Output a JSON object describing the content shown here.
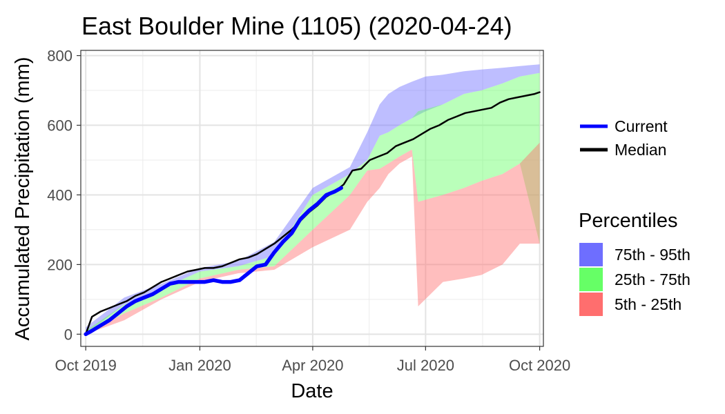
{
  "chart_data": {
    "type": "area",
    "title": "East Boulder Mine (1105) (2020-04-24)",
    "xlabel": "Date",
    "ylabel": "Accumulated Precipitation (mm)",
    "xlim": [
      "2019-09-27",
      "2020-10-04"
    ],
    "ylim": [
      -35,
      815
    ],
    "x_ticks": [
      {
        "date": "2019-10-01",
        "label": "Oct 2019"
      },
      {
        "date": "2020-01-01",
        "label": "Jan 2020"
      },
      {
        "date": "2020-04-01",
        "label": "Apr 2020"
      },
      {
        "date": "2020-07-01",
        "label": "Jul 2020"
      },
      {
        "date": "2020-10-01",
        "label": "Oct 2020"
      }
    ],
    "y_ticks": [
      0,
      200,
      400,
      600,
      800
    ],
    "grid": true,
    "legend_lines_title": "",
    "legend_fill_title": "Percentiles",
    "legend_position": "right",
    "colors": {
      "current": "#0000ff",
      "median": "#000000",
      "p75_95": "#6e6eff",
      "p25_75": "#66ff66",
      "p5_25": "#ff6e6e"
    },
    "series_lines": [
      {
        "name": "Current",
        "color": "#0000ff",
        "x": [
          "2019-10-01",
          "2019-10-06",
          "2019-10-13",
          "2019-10-20",
          "2019-10-27",
          "2019-11-03",
          "2019-11-10",
          "2019-11-17",
          "2019-11-24",
          "2019-12-01",
          "2019-12-08",
          "2019-12-15",
          "2019-12-22",
          "2019-12-29",
          "2020-01-05",
          "2020-01-12",
          "2020-01-19",
          "2020-01-26",
          "2020-02-02",
          "2020-02-09",
          "2020-02-16",
          "2020-02-23",
          "2020-03-01",
          "2020-03-08",
          "2020-03-15",
          "2020-03-22",
          "2020-03-29",
          "2020-04-05",
          "2020-04-12",
          "2020-04-19",
          "2020-04-24"
        ],
        "values": [
          0,
          10,
          25,
          40,
          60,
          80,
          95,
          105,
          115,
          130,
          145,
          150,
          150,
          150,
          150,
          155,
          150,
          150,
          155,
          175,
          195,
          200,
          235,
          265,
          290,
          330,
          355,
          375,
          400,
          410,
          420
        ]
      },
      {
        "name": "Median",
        "color": "#000000",
        "x": [
          "2019-10-01",
          "2019-10-06",
          "2019-10-13",
          "2019-10-20",
          "2019-10-27",
          "2019-11-03",
          "2019-11-10",
          "2019-11-17",
          "2019-11-24",
          "2019-12-01",
          "2019-12-08",
          "2019-12-15",
          "2019-12-22",
          "2019-12-29",
          "2020-01-05",
          "2020-01-12",
          "2020-01-19",
          "2020-01-26",
          "2020-02-02",
          "2020-02-09",
          "2020-02-16",
          "2020-02-23",
          "2020-03-01",
          "2020-03-08",
          "2020-03-15",
          "2020-03-22",
          "2020-03-29",
          "2020-04-05",
          "2020-04-12",
          "2020-04-19",
          "2020-04-26",
          "2020-05-03",
          "2020-05-10",
          "2020-05-17",
          "2020-05-24",
          "2020-05-31",
          "2020-06-07",
          "2020-06-14",
          "2020-06-21",
          "2020-06-28",
          "2020-07-05",
          "2020-07-12",
          "2020-07-19",
          "2020-07-26",
          "2020-08-02",
          "2020-08-09",
          "2020-08-16",
          "2020-08-23",
          "2020-08-30",
          "2020-09-06",
          "2020-09-13",
          "2020-09-20",
          "2020-09-27",
          "2020-10-01"
        ],
        "values": [
          0,
          50,
          65,
          75,
          85,
          95,
          110,
          120,
          135,
          150,
          160,
          170,
          180,
          185,
          190,
          190,
          195,
          205,
          215,
          220,
          230,
          245,
          260,
          280,
          300,
          325,
          350,
          370,
          395,
          410,
          430,
          470,
          475,
          500,
          510,
          520,
          540,
          550,
          560,
          575,
          590,
          600,
          615,
          625,
          635,
          640,
          645,
          650,
          665,
          675,
          680,
          685,
          690,
          695
        ]
      }
    ],
    "bands": [
      {
        "name": "75th - 95th",
        "color": "#6e6eff",
        "x": [
          "2019-10-01",
          "2019-11-01",
          "2019-12-01",
          "2020-01-01",
          "2020-02-01",
          "2020-03-01",
          "2020-04-01",
          "2020-05-01",
          "2020-05-15",
          "2020-05-25",
          "2020-06-01",
          "2020-06-10",
          "2020-06-20",
          "2020-07-01",
          "2020-07-15",
          "2020-08-01",
          "2020-08-15",
          "2020-09-01",
          "2020-09-15",
          "2020-10-01"
        ],
        "low": [
          0,
          85,
          130,
          180,
          195,
          225,
          400,
          460,
          500,
          570,
          580,
          600,
          620,
          640,
          660,
          690,
          700,
          720,
          740,
          750
        ],
        "high": [
          20,
          105,
          145,
          190,
          210,
          265,
          420,
          480,
          580,
          660,
          690,
          710,
          725,
          740,
          745,
          755,
          760,
          765,
          770,
          775
        ]
      },
      {
        "name": "25th - 75th",
        "color": "#66ff66",
        "x": [
          "2019-10-01",
          "2019-11-01",
          "2019-12-01",
          "2020-01-01",
          "2020-02-01",
          "2020-03-01",
          "2020-04-01",
          "2020-05-01",
          "2020-05-15",
          "2020-05-25",
          "2020-06-01",
          "2020-06-10",
          "2020-06-20",
          "2020-06-25",
          "2020-07-15",
          "2020-08-01",
          "2020-08-15",
          "2020-09-01",
          "2020-09-15",
          "2020-10-01"
        ],
        "low": [
          0,
          60,
          105,
          160,
          185,
          195,
          300,
          400,
          470,
          475,
          490,
          510,
          530,
          380,
          400,
          420,
          440,
          460,
          490,
          260
        ],
        "high": [
          10,
          85,
          130,
          180,
          195,
          225,
          400,
          460,
          500,
          570,
          580,
          600,
          620,
          640,
          660,
          690,
          700,
          720,
          740,
          750
        ]
      },
      {
        "name": "5th - 25th",
        "color": "#ff6e6e",
        "x": [
          "2019-10-01",
          "2019-11-01",
          "2019-12-01",
          "2020-01-01",
          "2020-02-01",
          "2020-03-01",
          "2020-04-01",
          "2020-05-01",
          "2020-05-15",
          "2020-05-25",
          "2020-06-01",
          "2020-06-10",
          "2020-06-20",
          "2020-06-25",
          "2020-07-15",
          "2020-08-01",
          "2020-08-15",
          "2020-09-01",
          "2020-09-15",
          "2020-10-01"
        ],
        "low": [
          0,
          40,
          100,
          150,
          175,
          185,
          250,
          300,
          380,
          420,
          460,
          490,
          510,
          80,
          150,
          160,
          170,
          200,
          260,
          260
        ],
        "high": [
          0,
          60,
          105,
          160,
          185,
          195,
          300,
          400,
          470,
          475,
          490,
          510,
          530,
          380,
          400,
          420,
          440,
          460,
          490,
          550
        ]
      }
    ]
  }
}
